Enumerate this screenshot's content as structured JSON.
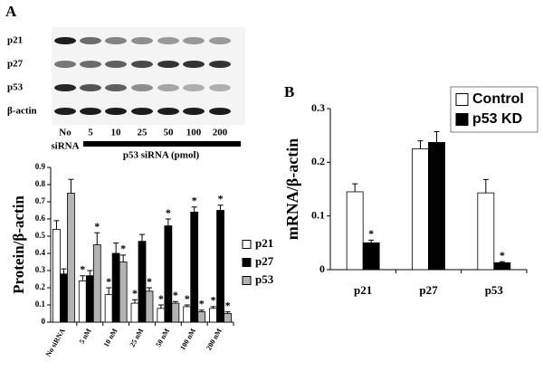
{
  "panel_a_label": "A",
  "blot": {
    "rows": [
      "p21",
      "p27",
      "p53",
      "β-actin"
    ],
    "first_lane": [
      "No",
      "siRNA"
    ],
    "lanes": [
      "5",
      "10",
      "25",
      "50",
      "100",
      "200"
    ],
    "group_label": "p53 siRNA (pmol)"
  },
  "panel_b_label": "B",
  "chart_data": [
    {
      "type": "bar",
      "y_label": "Protein/β-actin",
      "categories": [
        "No siRNA",
        "5 nM",
        "10 nM",
        "25 nM",
        "50 nM",
        "100 nM",
        "200 nM"
      ],
      "series": [
        {
          "name": "p21",
          "color": "#ffffff",
          "values": [
            0.54,
            0.24,
            0.16,
            0.11,
            0.08,
            0.09,
            0.08
          ],
          "errors": [
            0.05,
            0.03,
            0.04,
            0.02,
            0.02,
            0.01,
            0.01
          ],
          "annotations": [
            null,
            "*",
            "*",
            "*",
            "*",
            "*",
            "*"
          ]
        },
        {
          "name": "p27",
          "color": "#000000",
          "values": [
            0.28,
            0.27,
            0.4,
            0.47,
            0.56,
            0.64,
            0.65
          ],
          "errors": [
            0.03,
            0.03,
            0.06,
            0.04,
            0.04,
            0.03,
            0.03
          ],
          "annotations": [
            null,
            null,
            null,
            null,
            "*",
            "*",
            "*"
          ]
        },
        {
          "name": "p53",
          "color": "#b3b3b3",
          "values": [
            0.75,
            0.45,
            0.35,
            0.18,
            0.11,
            0.06,
            0.05
          ],
          "errors": [
            0.08,
            0.07,
            0.04,
            0.02,
            0.01,
            0.01,
            0.01
          ],
          "annotations": [
            null,
            "*",
            "*",
            "*",
            "*",
            "*",
            "*"
          ]
        }
      ],
      "ylim": [
        0,
        0.9
      ],
      "yticks": [
        0,
        0.1,
        0.2,
        0.3,
        0.4,
        0.5,
        0.6,
        0.7,
        0.8,
        0.9
      ],
      "legend": "right"
    },
    {
      "type": "bar",
      "y_label": "mRNA/β-actin",
      "categories": [
        "p21",
        "p27",
        "p53"
      ],
      "series": [
        {
          "name": "Control",
          "color": "#ffffff",
          "values": [
            0.145,
            0.225,
            0.143
          ],
          "errors": [
            0.015,
            0.015,
            0.025
          ],
          "annotations": [
            null,
            null,
            null
          ]
        },
        {
          "name": "p53 KD",
          "color": "#000000",
          "values": [
            0.05,
            0.237,
            0.013
          ],
          "errors": [
            0.005,
            0.02,
            0.002
          ],
          "annotations": [
            "*",
            null,
            "*"
          ]
        }
      ],
      "ylim": [
        0,
        0.3
      ],
      "yticks": [
        0,
        0.1,
        0.2,
        0.3
      ],
      "legend": "top right"
    }
  ]
}
